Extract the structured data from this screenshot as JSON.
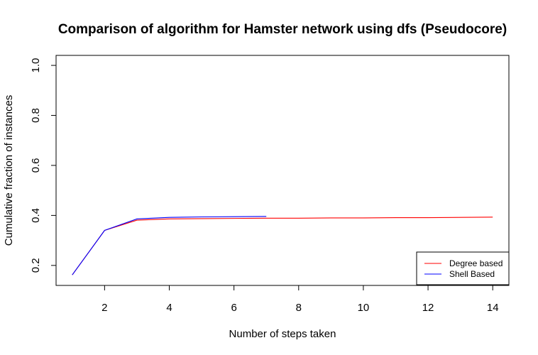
{
  "chart_data": {
    "type": "line",
    "title": "Comparison of algorithm for Hamster network using dfs (Pseudocore)",
    "xlabel": "Number of steps taken",
    "ylabel": "Cumulative fraction of instances",
    "xlim": [
      0.5,
      14.5
    ],
    "ylim": [
      0.12,
      1.04
    ],
    "x_ticks": [
      2,
      4,
      6,
      8,
      10,
      12,
      14
    ],
    "y_ticks": [
      0.2,
      0.4,
      0.6,
      0.8,
      1.0
    ],
    "x_tick_labels": [
      "2",
      "4",
      "6",
      "8",
      "10",
      "12",
      "14"
    ],
    "y_tick_labels": [
      "0.2",
      "0.4",
      "0.6",
      "0.8",
      "1.0"
    ],
    "grid": false,
    "legend_position": "bottom-right",
    "series": [
      {
        "name": "Degree based",
        "color": "#ff0000",
        "x": [
          1,
          2,
          3,
          4,
          5,
          6,
          7,
          8,
          9,
          10,
          11,
          12,
          13,
          14
        ],
        "y": [
          0.162,
          0.34,
          0.381,
          0.386,
          0.387,
          0.388,
          0.389,
          0.389,
          0.39,
          0.39,
          0.391,
          0.391,
          0.392,
          0.393
        ]
      },
      {
        "name": "Shell Based",
        "color": "#0000ff",
        "x": [
          1,
          2,
          3,
          4,
          5,
          6,
          7
        ],
        "y": [
          0.162,
          0.34,
          0.386,
          0.392,
          0.394,
          0.395,
          0.396
        ]
      }
    ]
  }
}
